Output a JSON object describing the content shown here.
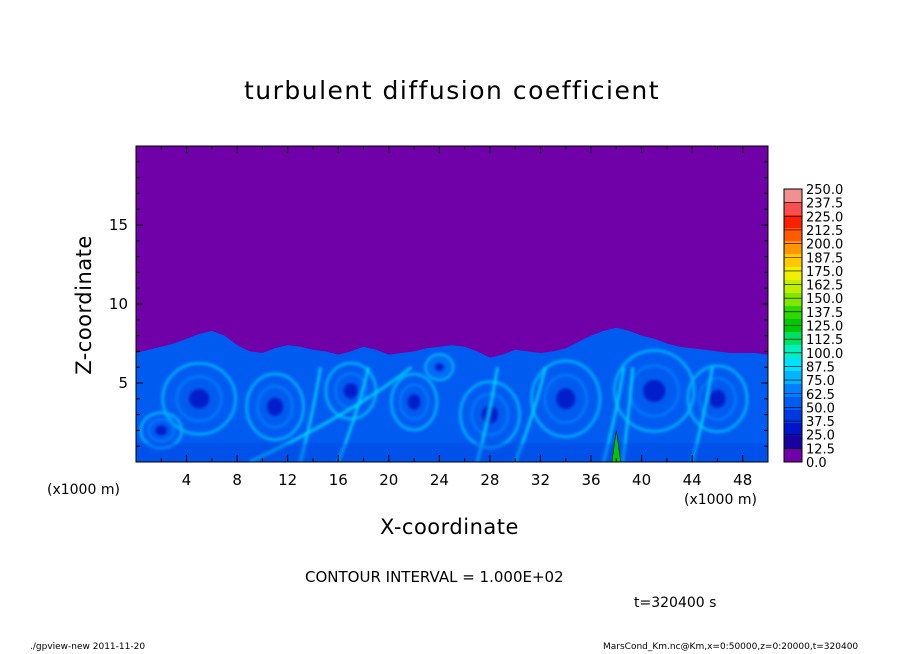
{
  "chart_data": {
    "type": "heatmap",
    "title": "turbulent diffusion coefficient",
    "xlabel": "X-coordinate",
    "ylabel": "Z-coordinate",
    "x_unit": "(x1000 m)",
    "xlim": [
      0,
      50
    ],
    "ylim": [
      0,
      20
    ],
    "x_ticks": [
      4,
      8,
      12,
      16,
      20,
      24,
      28,
      32,
      36,
      40,
      44,
      48
    ],
    "y_ticks": [
      5,
      10,
      15
    ],
    "colorbar": {
      "levels": [
        "0.0",
        "12.5",
        "25.0",
        "37.5",
        "50.0",
        "62.5",
        "75.0",
        "87.5",
        "100.0",
        "112.5",
        "125.0",
        "137.5",
        "150.0",
        "162.5",
        "175.0",
        "187.5",
        "200.0",
        "212.5",
        "225.0",
        "237.5",
        "250.0"
      ],
      "colors": [
        "#7000a8",
        "#1a00a0",
        "#0014c8",
        "#0038e0",
        "#005cf0",
        "#0080ff",
        "#00b4ff",
        "#00e0ff",
        "#00f0c0",
        "#00e060",
        "#00c800",
        "#30d800",
        "#80e800",
        "#c0f000",
        "#f0f000",
        "#ffc800",
        "#ff9600",
        "#ff5a00",
        "#ff2000",
        "#f85050",
        "#f09090"
      ]
    },
    "field_background": "#7000a8",
    "turbulent_layer_top_z": [
      6.9,
      7.1,
      7.3,
      7.5,
      7.8,
      8.1,
      8.3,
      8.0,
      7.4,
      7.0,
      6.9,
      7.2,
      7.4,
      7.3,
      7.1,
      7.0,
      6.8,
      7.0,
      7.3,
      7.1,
      6.8,
      6.9,
      7.0,
      7.2,
      7.3,
      7.4,
      7.3,
      7.0,
      6.6,
      6.8,
      7.1,
      7.0,
      6.9,
      7.0,
      7.2,
      7.6,
      8.0,
      8.3,
      8.5,
      8.3,
      8.0,
      7.8,
      7.5,
      7.3,
      7.2,
      7.1,
      7.0,
      6.9,
      6.9,
      6.9,
      6.8
    ],
    "peak": {
      "x": 38,
      "z_top": 2
    }
  },
  "contour_interval": "CONTOUR INTERVAL = 1.000E+02",
  "time_label": "t=320400 s",
  "footer_left": "./gpview-new   2011-11-20",
  "footer_right": "MarsCond_Km.nc@Km,x=0:50000,z=0:20000,t=320400"
}
